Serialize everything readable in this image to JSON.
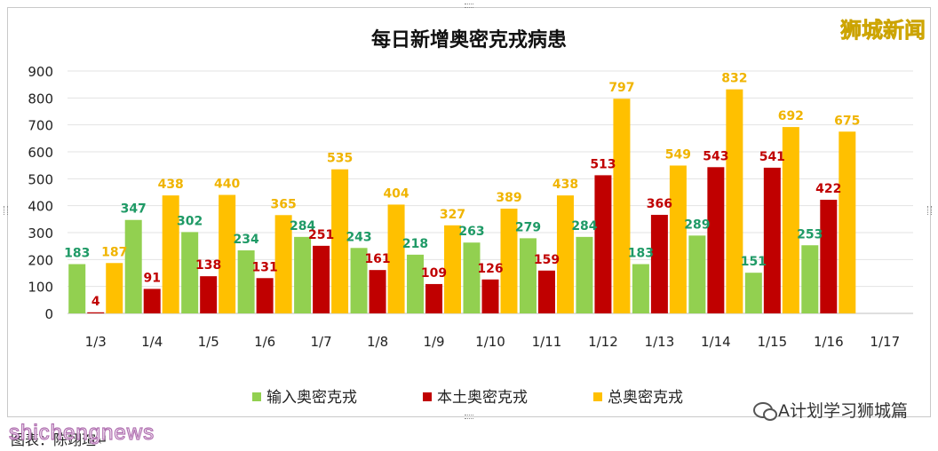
{
  "brand": "狮城新闻",
  "watermark": "shichengnews",
  "caption": "图表：陈翊瑄↵",
  "social": {
    "label": "A计划学习狮城篇"
  },
  "chart_data": {
    "type": "bar",
    "title": "每日新增奥密克戎病患",
    "categories": [
      "1/3",
      "1/4",
      "1/5",
      "1/6",
      "1/7",
      "1/8",
      "1/9",
      "1/10",
      "1/11",
      "1/12",
      "1/13",
      "1/14",
      "1/15",
      "1/16",
      "1/17"
    ],
    "ylim": [
      0,
      900
    ],
    "yticks": [
      0,
      100,
      200,
      300,
      400,
      500,
      600,
      700,
      800,
      900
    ],
    "grid": true,
    "legend_position": "bottom",
    "series": [
      {
        "name": "输入奥密克戎",
        "color": "#92d050",
        "label_color": "#1f9a66",
        "values": [
          183,
          347,
          302,
          234,
          284,
          243,
          218,
          263,
          279,
          284,
          183,
          289,
          151,
          253,
          null
        ]
      },
      {
        "name": "本土奥密克戎",
        "color": "#c00000",
        "label_color": "#c00000",
        "values": [
          4,
          91,
          138,
          131,
          251,
          161,
          109,
          126,
          159,
          513,
          366,
          543,
          541,
          422,
          null
        ]
      },
      {
        "name": "总奥密克戎",
        "color": "#ffc000",
        "label_color": "#f0b400",
        "values": [
          187,
          438,
          440,
          365,
          535,
          404,
          327,
          389,
          438,
          797,
          549,
          832,
          692,
          675,
          null
        ]
      }
    ]
  }
}
